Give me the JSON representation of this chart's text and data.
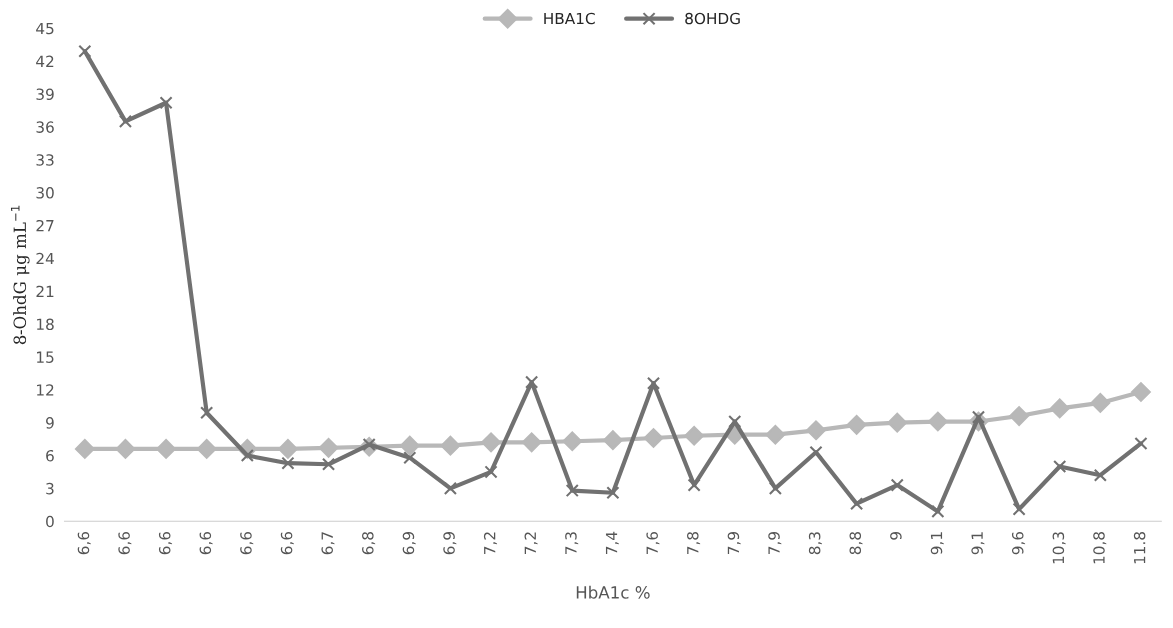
{
  "chart_data": {
    "type": "line",
    "xlabel": "HbA1c %",
    "ylabel": "8-OhdG μg mL$^{−1}$",
    "categories": [
      "6,6",
      "6,6",
      "6,6",
      "6,6",
      "6,6",
      "6,6",
      "6,7",
      "6,8",
      "6,9",
      "6,9",
      "7,2",
      "7,2",
      "7,3",
      "7,4",
      "7,6",
      "7,8",
      "7,9",
      "7,9",
      "8,3",
      "8,8",
      "9",
      "9,1",
      "9,1",
      "9,6",
      "10,3",
      "10,8",
      "11.8"
    ],
    "series": [
      {
        "name": "HBA1C",
        "color": "#b8b8b8",
        "marker": "diamond",
        "values": [
          6.6,
          6.6,
          6.6,
          6.6,
          6.6,
          6.6,
          6.7,
          6.8,
          6.9,
          6.9,
          7.2,
          7.2,
          7.3,
          7.4,
          7.6,
          7.8,
          7.9,
          7.9,
          8.3,
          8.8,
          9,
          9.1,
          9.1,
          9.6,
          10.3,
          10.8,
          11.8
        ]
      },
      {
        "name": "8OHDG",
        "color": "#717171",
        "marker": "cross",
        "values": [
          42.9,
          36.5,
          38.2,
          9.9,
          6.0,
          5.3,
          5.2,
          7.0,
          5.8,
          3.0,
          4.5,
          12.7,
          2.8,
          2.6,
          12.6,
          3.3,
          9.1,
          3.0,
          6.3,
          1.6,
          3.3,
          0.9,
          9.5,
          1.1,
          5.0,
          4.2,
          7.1
        ]
      }
    ],
    "ylim": [
      0,
      45
    ],
    "yticks": [
      0,
      3,
      6,
      9,
      12,
      15,
      18,
      21,
      24,
      27,
      30,
      33,
      36,
      39,
      42,
      45
    ],
    "grid": false,
    "legend": "top",
    "line_style": "solid"
  }
}
